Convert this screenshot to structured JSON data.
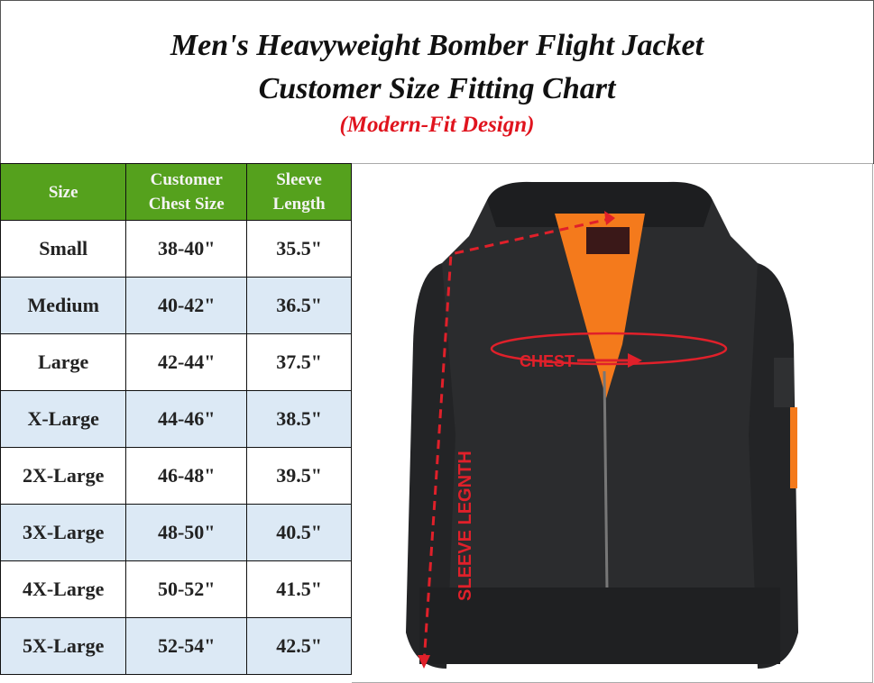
{
  "title": {
    "line1": "Men's Heavyweight Bomber Flight Jacket",
    "line2": "Customer Size Fitting Chart",
    "subtitle": "(Modern-Fit Design)"
  },
  "table": {
    "headers": [
      "Size",
      "Customer Chest Size",
      "Sleeve Length"
    ],
    "header_color": "#55a11d",
    "rows": [
      [
        "Small",
        "38-40\"",
        "35.5\""
      ],
      [
        "Medium",
        "40-42\"",
        "36.5\""
      ],
      [
        "Large",
        "42-44\"",
        "37.5\""
      ],
      [
        "X-Large",
        "44-46\"",
        "38.5\""
      ],
      [
        "2X-Large",
        "46-48\"",
        "39.5\""
      ],
      [
        "3X-Large",
        "48-50\"",
        "40.5\""
      ],
      [
        "4X-Large",
        "50-52\"",
        "41.5\""
      ],
      [
        "5X-Large",
        "52-54\"",
        "42.5\""
      ]
    ]
  },
  "image": {
    "chest_label": "CHEST",
    "sleeve_label": "SLEEVE LEGNTH",
    "accent": "#e0202a"
  }
}
